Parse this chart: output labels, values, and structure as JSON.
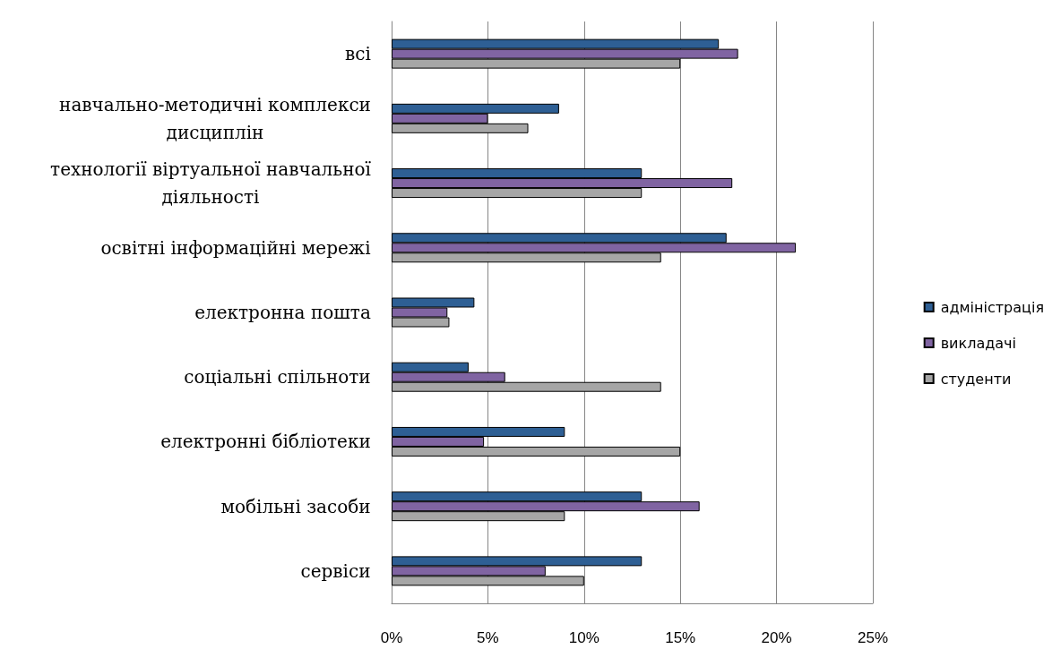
{
  "chart_data": {
    "type": "bar",
    "orientation": "horizontal",
    "categories": [
      "всі",
      "навчально-методичні комплекси дисциплін",
      "технології віртуальної навчальної діяльності",
      "освітні інформаційні мережі",
      "електронна пошта",
      "соціальні спільноти",
      "електронні бібліотеки",
      "мобільні засоби",
      "сервіси"
    ],
    "series": [
      {
        "name": "адміністрація",
        "color": "#2e5f94",
        "values": [
          17,
          8.7,
          13,
          17.4,
          4.3,
          4,
          9,
          13,
          13
        ]
      },
      {
        "name": "викладачі",
        "color": "#8064a2",
        "values": [
          18,
          5,
          17.7,
          21,
          2.9,
          5.9,
          4.8,
          16,
          8
        ]
      },
      {
        "name": "студенти",
        "color": "#a6a6a6",
        "values": [
          15,
          7.1,
          13,
          14,
          3,
          14,
          15,
          9,
          10
        ]
      }
    ],
    "xlim": [
      0,
      25
    ],
    "xticks": [
      {
        "value": 0,
        "label": "0%"
      },
      {
        "value": 5,
        "label": "5%"
      },
      {
        "value": 10,
        "label": "10%"
      },
      {
        "value": 15,
        "label": "15%"
      },
      {
        "value": 20,
        "label": "20%"
      },
      {
        "value": 25,
        "label": "25%"
      }
    ],
    "grid": "x",
    "legend": "right"
  }
}
